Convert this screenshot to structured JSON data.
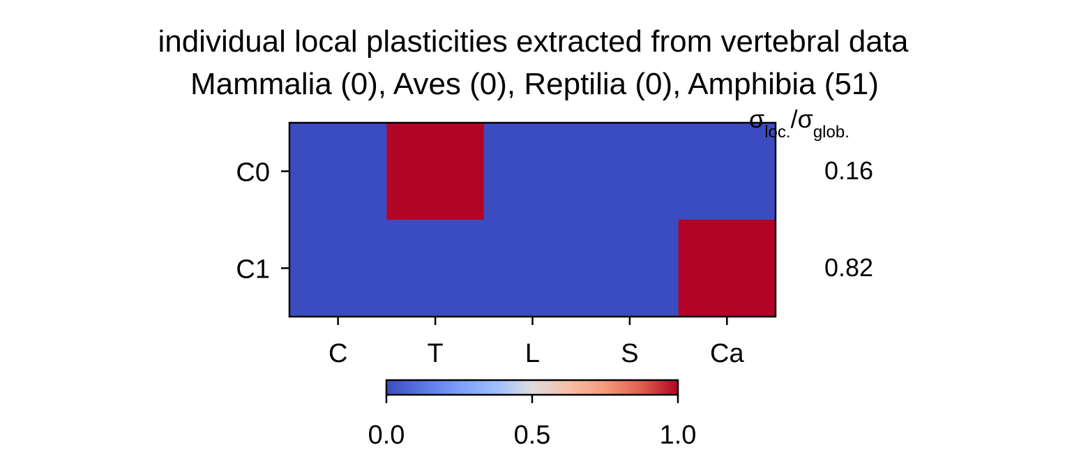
{
  "chart_data": {
    "type": "heatmap",
    "title": "individual local plasticities extracted from vertebral data",
    "subtitle": "Mammalia (0), Aves (0), Reptilia (0), Amphibia (51)",
    "x_categories": [
      "C",
      "T",
      "L",
      "S",
      "Ca"
    ],
    "y_categories": [
      "C0",
      "C1"
    ],
    "values": [
      [
        0,
        1,
        0,
        0,
        0
      ],
      [
        0,
        0,
        0,
        0,
        1
      ]
    ],
    "colormap": "coolwarm",
    "color_low": "#3b4cc0",
    "color_high": "#b40426",
    "colorbar": {
      "range": [
        0.0,
        1.0
      ],
      "tick_values": [
        0.0,
        0.5,
        1.0
      ],
      "tick_labels": [
        "0.0",
        "0.5",
        "1.0"
      ],
      "placement": "bottom"
    },
    "ratio_column": {
      "header_sigma": "σ",
      "header_loc_sub": "loc.",
      "header_sep": "/",
      "header_glob_sub": "glob.",
      "values": [
        "0.16",
        "0.82"
      ]
    }
  }
}
